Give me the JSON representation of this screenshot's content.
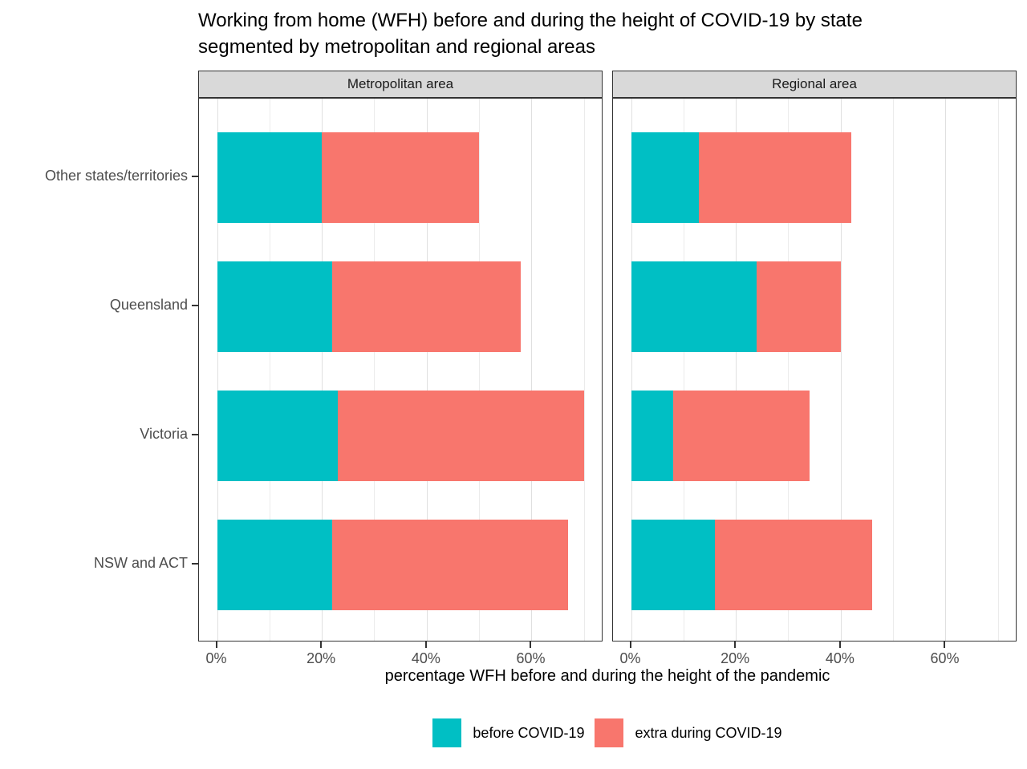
{
  "title_lines": [
    "Working from home (WFH) before and during the height of COVID-19 by state",
    "segmented by metropolitan and regional areas"
  ],
  "chart_data": {
    "type": "bar",
    "orientation": "horizontal",
    "stacked": true,
    "title": "Working from home (WFH) before and during the height of COVID-19 by state segmented by metropolitan and regional areas",
    "xlabel": "percentage WFH before and during the height of the pandemic",
    "ylabel": "",
    "xlim": [
      0,
      73.5
    ],
    "grid": "on",
    "legend_position": "bottom",
    "x_ticks": [
      "0%",
      "20%",
      "40%",
      "60%"
    ],
    "x_tick_values": [
      0,
      20,
      40,
      60
    ],
    "minor_gridline_values": [
      10,
      30,
      50,
      70
    ],
    "categories": [
      "Other states/territories",
      "Queensland",
      "Victoria",
      "NSW and ACT"
    ],
    "facets": [
      {
        "label": "Metropolitan area",
        "series": [
          {
            "name": "before COVID-19",
            "color": "#00BFC4",
            "values": [
              20,
              22,
              23,
              22
            ]
          },
          {
            "name": "extra during COVID-19",
            "color": "#F8766D",
            "values": [
              30,
              36,
              47,
              45
            ]
          }
        ],
        "totals": [
          50,
          58,
          70,
          67
        ]
      },
      {
        "label": "Regional area",
        "series": [
          {
            "name": "before COVID-19",
            "color": "#00BFC4",
            "values": [
              13,
              24,
              8,
              16
            ]
          },
          {
            "name": "extra during COVID-19",
            "color": "#F8766D",
            "values": [
              29,
              16,
              26,
              30
            ]
          }
        ],
        "totals": [
          42,
          40,
          34,
          46
        ]
      }
    ],
    "legend": [
      {
        "label": "before COVID-19",
        "color": "#00BFC4"
      },
      {
        "label": "extra during COVID-19",
        "color": "#F8766D"
      }
    ],
    "colors": {
      "strip_background": "#d9d9d9",
      "panel_border": "#333333",
      "gridline_major": "#e0e0e0",
      "gridline_minor": "#ebebeb",
      "axis_text": "#4d4d4d"
    }
  }
}
